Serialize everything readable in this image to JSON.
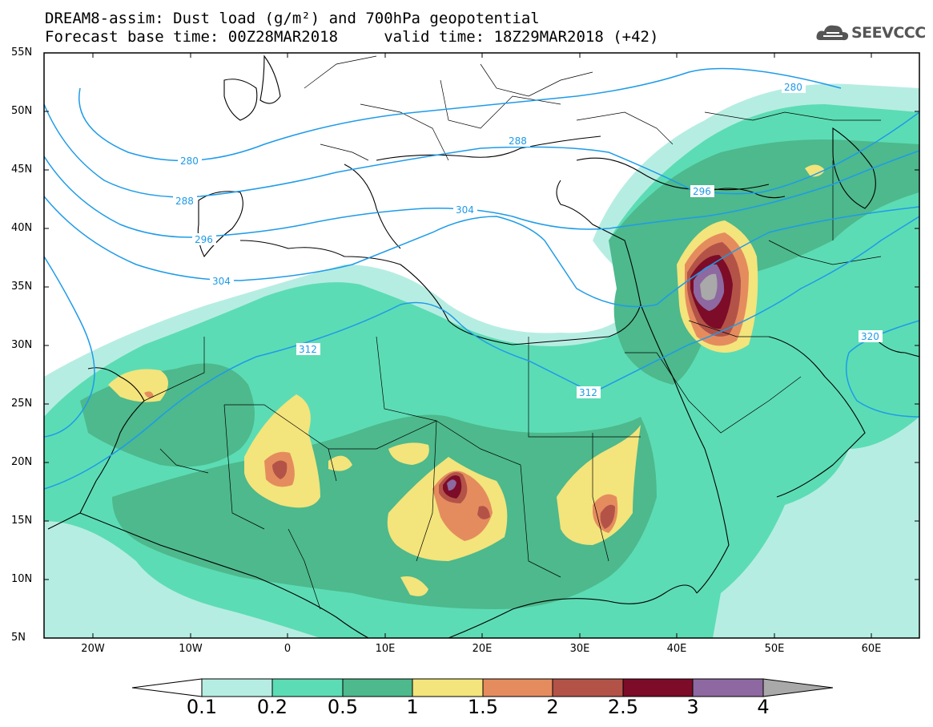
{
  "header": {
    "title_line1": "DREAM8-assim: Dust load (g/m²) and 700hPa geopotential",
    "title_line2": "Forecast base time: 00Z28MAR2018     valid time: 18Z29MAR2018 (+42)",
    "logo_text": "SEEVCCC"
  },
  "map": {
    "lat_labels": [
      "55N",
      "50N",
      "45N",
      "40N",
      "35N",
      "30N",
      "25N",
      "20N",
      "15N",
      "10N",
      "5N"
    ],
    "lon_labels": [
      "20W",
      "10W",
      "0",
      "10E",
      "20E",
      "30E",
      "40E",
      "50E",
      "60E"
    ],
    "contour_labels": [
      "280",
      "288",
      "296",
      "304",
      "312",
      "280",
      "288",
      "296",
      "304",
      "312",
      "320"
    ]
  },
  "colorbar": {
    "labels": [
      "0.1",
      "0.2",
      "0.5",
      "1",
      "1.5",
      "2",
      "2.5",
      "3",
      "4"
    ],
    "colors": [
      "#b6ede2",
      "#5cdcb4",
      "#4db98c",
      "#f3e47c",
      "#e58c5e",
      "#b35348",
      "#7c0c28",
      "#8e68a0",
      "#a9a9a9"
    ]
  }
}
